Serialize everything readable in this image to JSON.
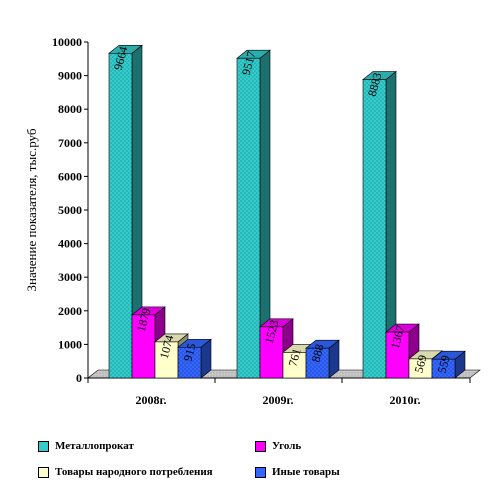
{
  "chart_data": {
    "type": "bar",
    "ylabel": "Значение показателя, тыс.руб",
    "xlabel": "",
    "ylim": [
      0,
      10000
    ],
    "yticks": [
      0,
      1000,
      2000,
      3000,
      4000,
      5000,
      6000,
      7000,
      8000,
      9000,
      10000
    ],
    "categories": [
      "2008г.",
      "2009г.",
      "2010г."
    ],
    "legend_position": "bottom",
    "grid": false,
    "series": [
      {
        "name": "Металлопрокат",
        "color": "#33cccc",
        "pattern": "dots",
        "values": [
          9664,
          9517,
          8883
        ],
        "labels": [
          "9664",
          "9517",
          "8883"
        ]
      },
      {
        "name": "Уголь",
        "color": "#ff00ff",
        "pattern": "none",
        "values": [
          1879,
          1523,
          1367
        ],
        "labels": [
          "1879",
          "1523",
          "1367"
        ]
      },
      {
        "name": "Товары народного потребления",
        "color": "#ffffcc",
        "pattern": "none",
        "values": [
          1074,
          761,
          569
        ],
        "labels": [
          "1074",
          "761",
          "569"
        ]
      },
      {
        "name": "Иные товары",
        "color": "#3366ff",
        "pattern": "dots",
        "values": [
          915,
          888,
          559
        ],
        "labels": [
          "915",
          "888",
          "559"
        ]
      }
    ]
  }
}
